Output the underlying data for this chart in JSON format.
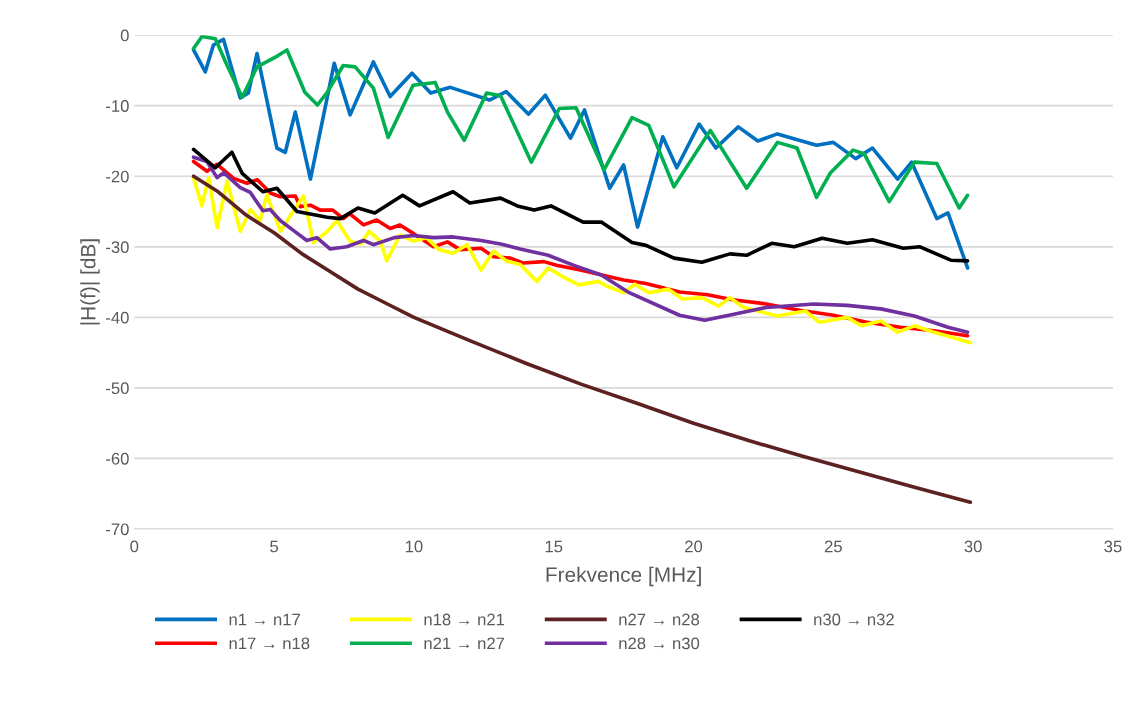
{
  "chart_data": {
    "type": "line",
    "xlabel": "Frekvence [MHz]",
    "ylabel": "|H(f)| [dB]",
    "xlim": [
      0,
      35
    ],
    "xticks": [
      0,
      5,
      10,
      15,
      20,
      25,
      30,
      35
    ],
    "ylim": [
      -70,
      0
    ],
    "yticks": [
      -70,
      -60,
      -50,
      -40,
      -30,
      -20,
      -10,
      0
    ],
    "grid": "y",
    "legend": "bottom",
    "marker": "none",
    "line_style": "solid",
    "series": [
      {
        "name": "n1 → n17",
        "color": "#0070c0",
        "x": [
          2.12,
          2.54,
          2.83,
          3.19,
          3.79,
          4.08,
          4.39,
          5.1,
          5.4,
          5.76,
          6.3,
          7.15,
          7.72,
          8.55,
          9.15,
          9.93,
          10.6,
          11.3,
          12.7,
          13.3,
          14.1,
          14.7,
          15.6,
          16.1,
          17.0,
          17.5,
          18.0,
          18.9,
          19.4,
          20.2,
          20.8,
          21.6,
          22.3,
          23.0,
          24.4,
          25.0,
          25.8,
          26.4,
          27.3,
          27.8,
          28.7,
          29.1,
          29.8
        ],
        "values": [
          -2.1,
          -5.2,
          -1.4,
          -0.6,
          -8.9,
          -8.2,
          -2.6,
          -16,
          -16.6,
          -10.9,
          -20.4,
          -4,
          -11.3,
          -3.8,
          -8.7,
          -5.4,
          -8.2,
          -7.4,
          -9.2,
          -8,
          -11.2,
          -8.5,
          -14.6,
          -10.6,
          -21.7,
          -18.4,
          -27.2,
          -14.4,
          -18.8,
          -12.6,
          -16,
          -13,
          -15,
          -14,
          -15.6,
          -15.2,
          -17.5,
          -16,
          -20.4,
          -18,
          -26,
          -25.2,
          -33
        ]
      },
      {
        "name": "n17 → n18",
        "color": "#ff0000",
        "x": [
          2.12,
          2.6,
          2.96,
          3.55,
          4.03,
          4.4,
          4.88,
          5.23,
          5.76,
          5.93,
          6.3,
          6.65,
          7.1,
          7.48,
          7.7,
          8.2,
          8.67,
          9.15,
          9.5,
          9.98,
          10.7,
          11.2,
          11.65,
          12.4,
          12.85,
          13.45,
          13.9,
          14.65,
          15.1,
          15.95,
          17.5,
          18.3,
          19.5,
          20.5,
          21.4,
          22.6,
          23.8,
          25.0,
          26.2,
          27.4,
          28.6,
          29.8
        ],
        "values": [
          -17.9,
          -19.3,
          -18.3,
          -20.3,
          -21,
          -20.5,
          -22.4,
          -22.9,
          -22.8,
          -24.3,
          -24.1,
          -24.8,
          -24.8,
          -26,
          -25.3,
          -26.9,
          -26.2,
          -27.4,
          -26.9,
          -28.1,
          -30,
          -29.3,
          -30.4,
          -30.2,
          -31.4,
          -31.6,
          -32.3,
          -32.1,
          -32.6,
          -33.3,
          -34.7,
          -35.2,
          -36.4,
          -36.8,
          -37.5,
          -38.1,
          -39,
          -39.7,
          -40.7,
          -41.4,
          -41.9,
          -42.6
        ]
      },
      {
        "name": "n18 → n21",
        "color": "#ffff00",
        "x": [
          2.12,
          2.42,
          2.66,
          2.96,
          3.32,
          3.79,
          4.15,
          4.5,
          4.74,
          5.23,
          5.58,
          6.05,
          6.41,
          6.9,
          7.25,
          7.72,
          8.1,
          8.4,
          8.8,
          9.03,
          9.5,
          9.98,
          10.45,
          10.9,
          11.4,
          11.9,
          12.4,
          12.85,
          13.3,
          13.8,
          14.4,
          14.8,
          15.4,
          15.9,
          16.6,
          16.9,
          17.5,
          17.9,
          18.4,
          19.1,
          19.6,
          20.3,
          20.9,
          21.3,
          21.8,
          23.0,
          24.0,
          24.5,
          25.5,
          26.0,
          26.7,
          27.3,
          27.9,
          28.6,
          29.4,
          29.9
        ],
        "values": [
          -20.2,
          -24.2,
          -20.2,
          -27.3,
          -20.7,
          -27.8,
          -24.7,
          -26.3,
          -22.6,
          -27.8,
          -25.6,
          -22.8,
          -29.4,
          -27.8,
          -26.3,
          -29.2,
          -29.6,
          -27.8,
          -29.2,
          -32,
          -28.3,
          -29.2,
          -28.7,
          -30.4,
          -30.9,
          -29.7,
          -33.3,
          -30.6,
          -32,
          -32.5,
          -34.9,
          -33,
          -34.4,
          -35.4,
          -34.9,
          -35.6,
          -36.5,
          -35.3,
          -36.5,
          -36,
          -37.4,
          -37.2,
          -38.4,
          -37.2,
          -38.6,
          -39.8,
          -39.1,
          -40.7,
          -40,
          -41.2,
          -40.5,
          -42.1,
          -41.2,
          -42.1,
          -43,
          -43.6
        ]
      },
      {
        "name": "n21 → n27",
        "color": "#00b050",
        "x": [
          2.12,
          2.42,
          2.9,
          3.32,
          3.86,
          4.39,
          5.1,
          5.46,
          6.1,
          6.55,
          6.9,
          7.47,
          7.9,
          8.55,
          9.08,
          9.97,
          10.76,
          11.2,
          11.8,
          12.6,
          13.1,
          14.2,
          15.2,
          15.8,
          16.8,
          17.8,
          18.4,
          19.3,
          20.6,
          21.9,
          23.0,
          23.7,
          24.4,
          24.9,
          25.7,
          26.1,
          27.0,
          27.9,
          28.7,
          29.5,
          29.8
        ],
        "values": [
          -1.9,
          -0.2,
          -0.5,
          -4.3,
          -8.8,
          -4.5,
          -3,
          -2.1,
          -8.1,
          -9.9,
          -8.1,
          -4.3,
          -4.5,
          -7.5,
          -14.5,
          -7.1,
          -6.7,
          -10.9,
          -14.9,
          -8.2,
          -8.6,
          -18,
          -10.4,
          -10.3,
          -19.1,
          -11.7,
          -12.8,
          -21.5,
          -13.5,
          -21.7,
          -15.2,
          -16,
          -23,
          -19.5,
          -16.3,
          -16.8,
          -23.6,
          -18,
          -18.2,
          -24.5,
          -22.7
        ]
      },
      {
        "name": "n27 → n28",
        "color": "#5c2120",
        "x": [
          2.12,
          3,
          4,
          5,
          6,
          7,
          8,
          9,
          10,
          12,
          14,
          16,
          18,
          20,
          22,
          24,
          26,
          28,
          29.9
        ],
        "values": [
          -20,
          -22.2,
          -25.5,
          -28,
          -31,
          -33.5,
          -36,
          -38,
          -40,
          -43.3,
          -46.5,
          -49.5,
          -52.2,
          -55,
          -57.5,
          -59.8,
          -62,
          -64.2,
          -66.2
        ]
      },
      {
        "name": "n28 → n30",
        "color": "#7030a0",
        "x": [
          2.12,
          2.6,
          2.96,
          3.2,
          3.79,
          4.15,
          4.6,
          4.86,
          5.23,
          5.7,
          6.17,
          6.53,
          7.0,
          7.6,
          8.2,
          8.55,
          9.3,
          9.98,
          10.7,
          11.4,
          12.4,
          13.1,
          13.8,
          14.8,
          15.7,
          16.7,
          17.7,
          19.5,
          20.4,
          21.4,
          22.6,
          24.3,
          25.5,
          26.7,
          27.9,
          29.1,
          29.8
        ],
        "values": [
          -17.3,
          -17.9,
          -20.2,
          -19.5,
          -21.6,
          -22.3,
          -24.9,
          -24.7,
          -26.3,
          -27.7,
          -29.1,
          -28.7,
          -30.3,
          -30,
          -29.1,
          -29.7,
          -28.7,
          -28.4,
          -28.7,
          -28.6,
          -29.1,
          -29.6,
          -30.3,
          -31.2,
          -32.6,
          -34,
          -36.5,
          -39.7,
          -40.4,
          -39.6,
          -38.6,
          -38.1,
          -38.3,
          -38.8,
          -39.8,
          -41.4,
          -42.1
        ]
      },
      {
        "name": "n30 → n32",
        "color": "#000000",
        "x": [
          2.12,
          2.9,
          3.49,
          3.86,
          4.6,
          5.1,
          5.82,
          6.9,
          7.37,
          8.0,
          8.6,
          9.6,
          10.2,
          11.4,
          12.0,
          13.1,
          13.7,
          14.3,
          14.9,
          16.05,
          16.7,
          17.8,
          18.3,
          19.3,
          20.3,
          21.3,
          21.9,
          22.8,
          23.6,
          24.6,
          25.5,
          26.4,
          27.5,
          28.1,
          29.2,
          29.8
        ],
        "values": [
          -16.2,
          -18.8,
          -16.6,
          -19.6,
          -22.2,
          -21.7,
          -25,
          -25.8,
          -26,
          -24.5,
          -25.2,
          -22.7,
          -24.2,
          -22.2,
          -23.8,
          -23.1,
          -24.2,
          -24.8,
          -24.2,
          -26.5,
          -26.5,
          -29.4,
          -29.8,
          -31.6,
          -32.2,
          -31,
          -31.2,
          -29.5,
          -30,
          -28.8,
          -29.5,
          -29,
          -30.2,
          -30,
          -31.9,
          -32
        ]
      }
    ]
  }
}
